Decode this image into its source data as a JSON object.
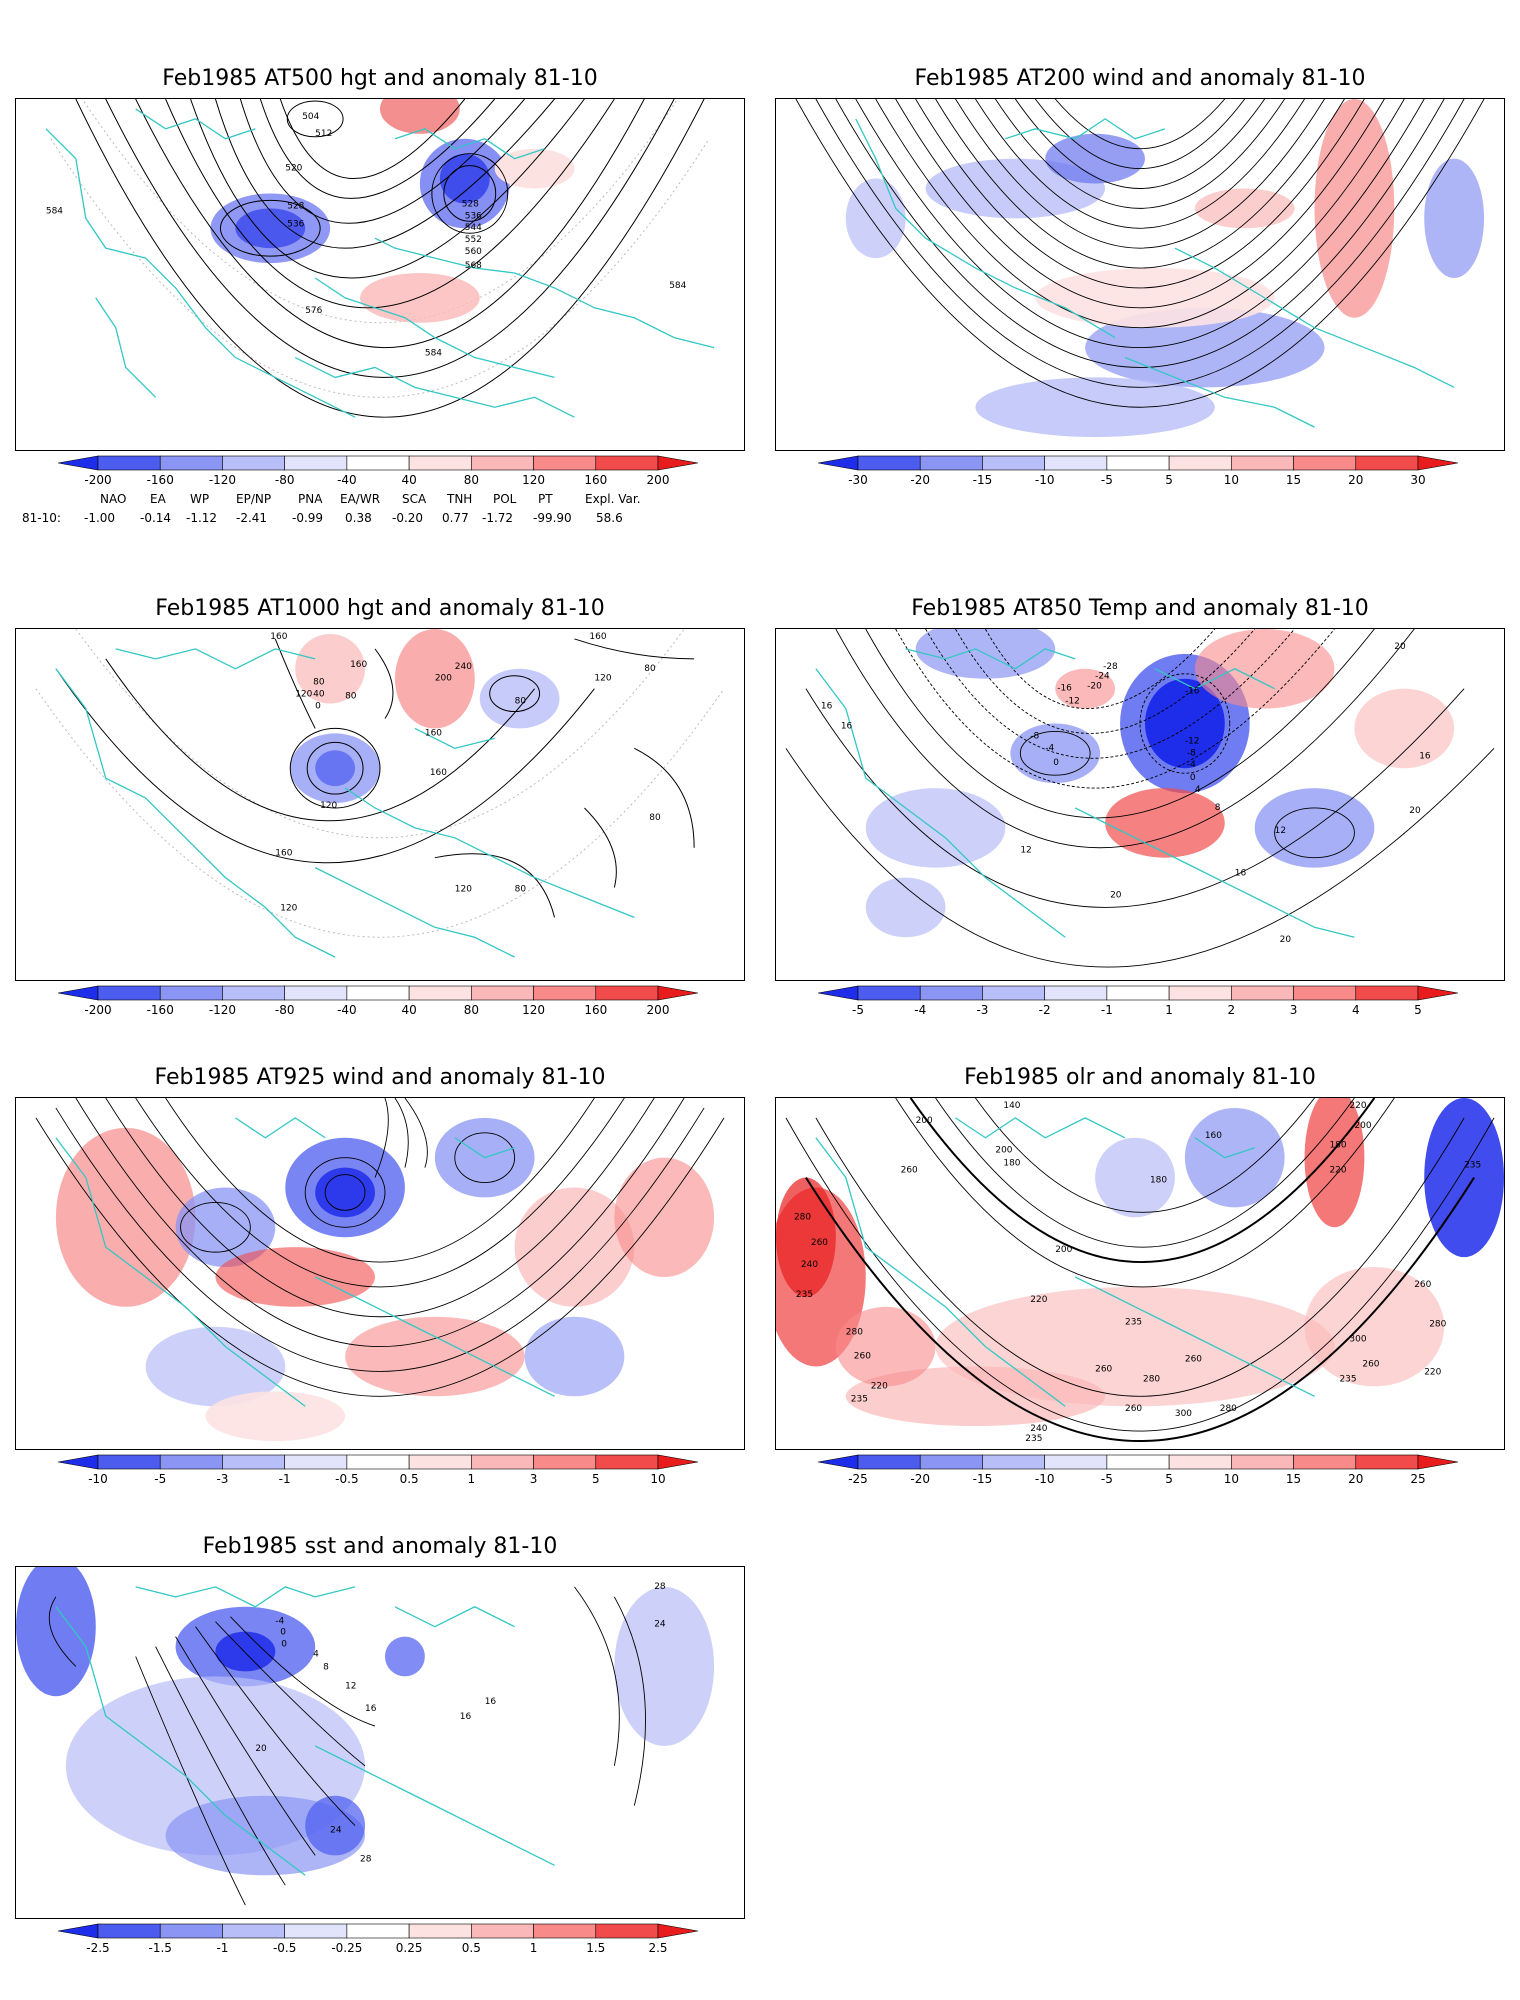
{
  "panels": [
    {
      "id": "p1",
      "title": "Feb1985 AT500 hgt and anomaly 81-10",
      "bar_colors": [
        "#1e2dea",
        "#4c5cef",
        "#8a95f4",
        "#b8bef8",
        "#e2e4fc",
        "#ffffff",
        "#fde2e2",
        "#fbb8b8",
        "#f88a8a",
        "#f24b4b",
        "#e81c1c"
      ],
      "bar_labels": [
        "-200",
        "-160",
        "-120",
        "-80",
        "-40",
        "40",
        "80",
        "120",
        "160",
        "200"
      ],
      "contour_labels": [
        "504",
        "512",
        "520",
        "528",
        "536",
        "528",
        "536",
        "544",
        "552",
        "560",
        "568",
        "576",
        "584",
        "584",
        "584"
      ]
    },
    {
      "id": "p2",
      "title": "Feb1985 AT200 wind and anomaly 81-10",
      "bar_colors": [
        "#1e2dea",
        "#4c5cef",
        "#8a95f4",
        "#b8bef8",
        "#e2e4fc",
        "#ffffff",
        "#fde2e2",
        "#fbb8b8",
        "#f88a8a",
        "#f24b4b",
        "#e81c1c"
      ],
      "bar_labels": [
        "-30",
        "-20",
        "-15",
        "-10",
        "-5",
        "5",
        "10",
        "15",
        "20",
        "30"
      ]
    },
    {
      "id": "p3",
      "title": "Feb1985 AT1000 hgt and anomaly 81-10",
      "bar_colors": [
        "#1e2dea",
        "#4c5cef",
        "#8a95f4",
        "#b8bef8",
        "#e2e4fc",
        "#ffffff",
        "#fde2e2",
        "#fbb8b8",
        "#f88a8a",
        "#f24b4b",
        "#e81c1c"
      ],
      "bar_labels": [
        "-200",
        "-160",
        "-120",
        "-80",
        "-40",
        "40",
        "80",
        "120",
        "160",
        "200"
      ],
      "contour_labels": [
        "160",
        "160",
        "120",
        "80",
        "40",
        "0",
        "240",
        "200",
        "80",
        "160",
        "120",
        "160",
        "120",
        "160",
        "160",
        "120",
        "80",
        "80",
        "120",
        "80",
        "80"
      ]
    },
    {
      "id": "p4",
      "title": "Feb1985 AT850 Temp and anomaly 81-10",
      "bar_colors": [
        "#1e2dea",
        "#4c5cef",
        "#8a95f4",
        "#b8bef8",
        "#e2e4fc",
        "#ffffff",
        "#fde2e2",
        "#fbb8b8",
        "#f88a8a",
        "#f24b4b",
        "#e81c1c"
      ],
      "bar_labels": [
        "-5",
        "-4",
        "-3",
        "-2",
        "-1",
        "1",
        "2",
        "3",
        "4",
        "5"
      ],
      "contour_labels": [
        "16",
        "16",
        "-16",
        "-12",
        "-28",
        "-24",
        "-20",
        "-16",
        "-8",
        "-4",
        "0",
        "-12",
        "-8",
        "-4",
        "0",
        "4",
        "8",
        "12",
        "16",
        "20",
        "20",
        "20",
        "12",
        "20",
        "16"
      ]
    },
    {
      "id": "p5",
      "title": "Feb1985 AT925 wind and anomaly 81-10",
      "bar_colors": [
        "#1e2dea",
        "#4c5cef",
        "#8a95f4",
        "#b8bef8",
        "#e2e4fc",
        "#ffffff",
        "#fde2e2",
        "#fbb8b8",
        "#f88a8a",
        "#f24b4b",
        "#e81c1c"
      ],
      "bar_labels": [
        "-10",
        "-5",
        "-3",
        "-1",
        "-0.5",
        "0.5",
        "1",
        "3",
        "5",
        "10"
      ]
    },
    {
      "id": "p6",
      "title": "Feb1985 olr and anomaly 81-10",
      "bar_colors": [
        "#1e2dea",
        "#4c5cef",
        "#8a95f4",
        "#b8bef8",
        "#e2e4fc",
        "#ffffff",
        "#fde2e2",
        "#fbb8b8",
        "#f88a8a",
        "#f24b4b",
        "#e81c1c"
      ],
      "bar_labels": [
        "-25",
        "-20",
        "-15",
        "-10",
        "-5",
        "5",
        "10",
        "15",
        "20",
        "25"
      ],
      "contour_labels": [
        "140",
        "200",
        "260",
        "280",
        "260",
        "240",
        "235",
        "280",
        "260",
        "235",
        "220",
        "180",
        "200",
        "180",
        "160",
        "200",
        "220",
        "235",
        "260",
        "280",
        "260",
        "300",
        "280",
        "260",
        "240",
        "235",
        "220",
        "180",
        "200",
        "220",
        "235",
        "260",
        "280",
        "300",
        "260",
        "220",
        "235"
      ]
    },
    {
      "id": "p7",
      "title": "Feb1985 sst and anomaly 81-10",
      "bar_colors": [
        "#1e2dea",
        "#4c5cef",
        "#8a95f4",
        "#b8bef8",
        "#e2e4fc",
        "#ffffff",
        "#fde2e2",
        "#fbb8b8",
        "#f88a8a",
        "#f24b4b",
        "#e81c1c"
      ],
      "bar_labels": [
        "-2.5",
        "-1.5",
        "-1",
        "-0.5",
        "-0.25",
        "0.25",
        "0.5",
        "1",
        "1.5",
        "2.5"
      ],
      "contour_labels": [
        "0",
        "-4",
        "0",
        "4",
        "8",
        "12",
        "16",
        "20",
        "24",
        "28",
        "16",
        "16",
        "24",
        "28"
      ]
    }
  ],
  "indices": {
    "headers": [
      "NAO",
      "EA",
      "WP",
      "EP/NP",
      "PNA",
      "EA/WR",
      "SCA",
      "TNH",
      "POL",
      "PT",
      "Expl. Var."
    ],
    "row_label": "81-10:",
    "values": [
      "-1.00",
      "-0.14",
      "-1.12",
      "-2.41",
      "-0.99",
      "0.38",
      "-0.20",
      "0.77",
      "-1.72",
      "-99.90",
      "58.6"
    ]
  },
  "colors": {
    "coast": "#33c7c4",
    "contour": "#000000"
  }
}
